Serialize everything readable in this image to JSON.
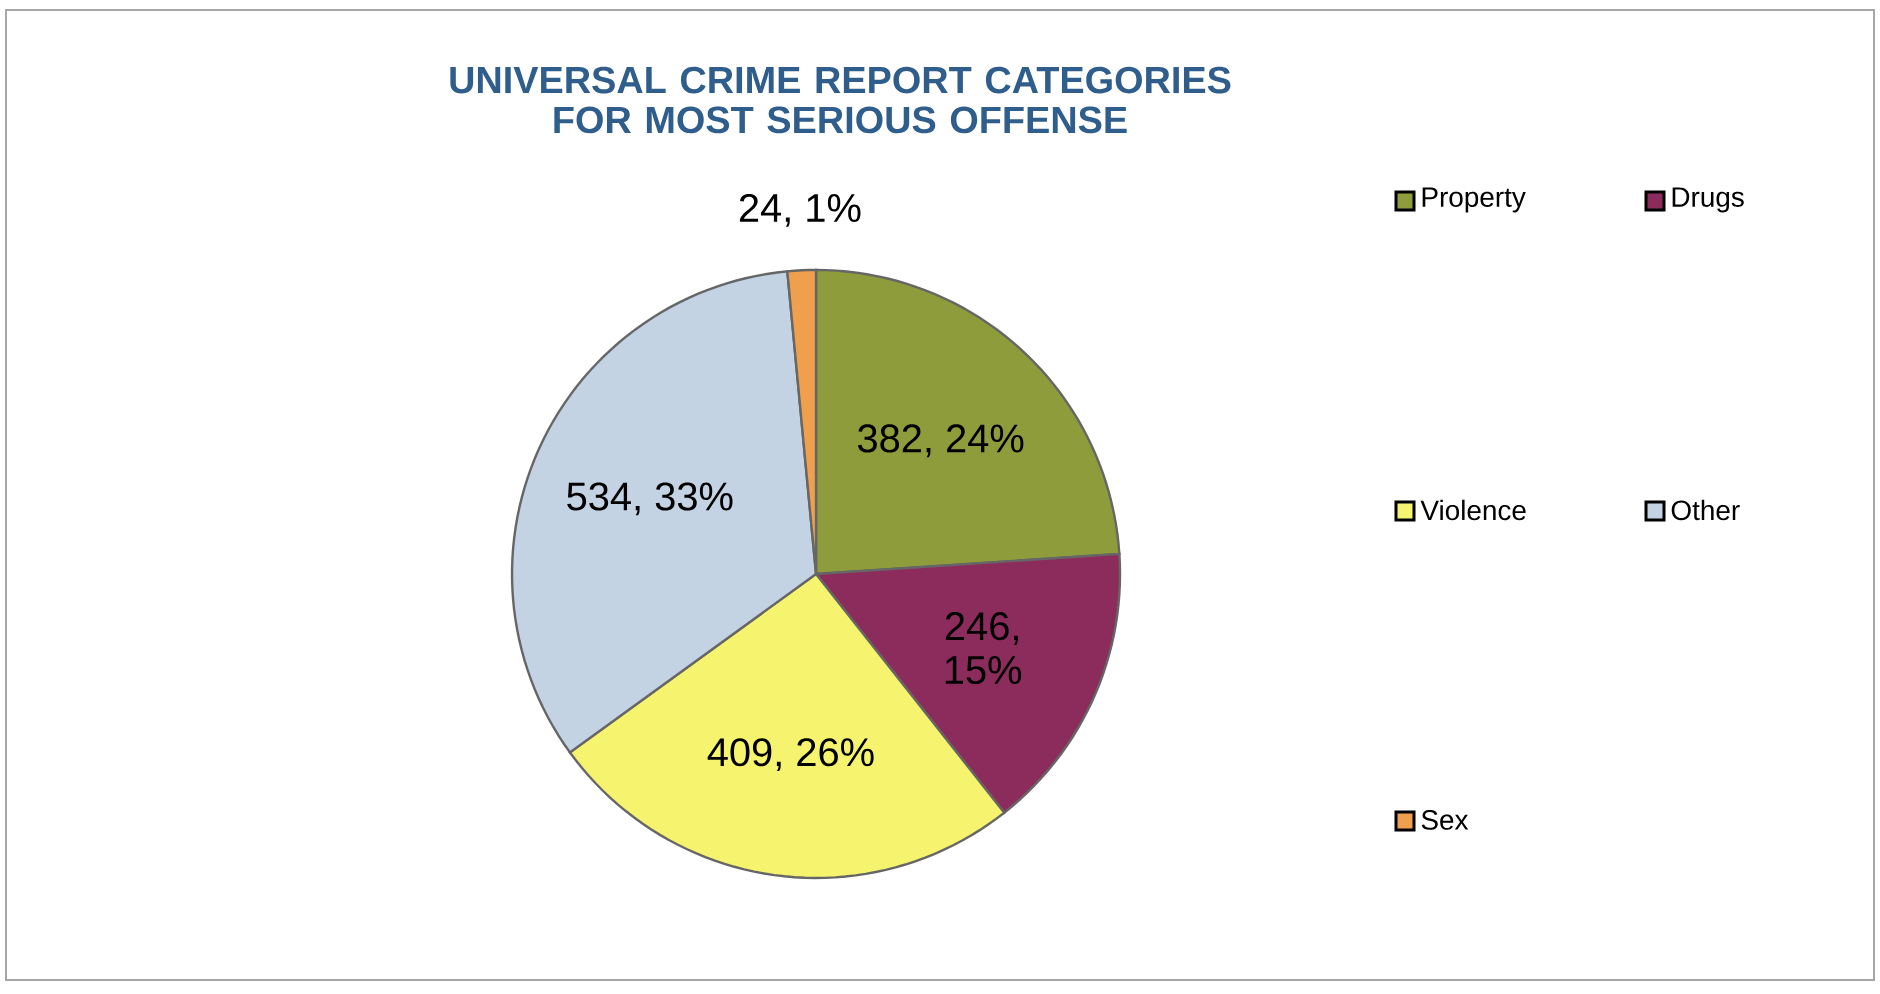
{
  "chart_data": {
    "type": "pie",
    "title": "UNIVERSAL CRIME REPORT CATEGORIES FOR MOST SERIOUS OFFENSE",
    "categories": [
      "Property",
      "Drugs",
      "Violence",
      "Other",
      "Sex"
    ],
    "values": [
      382,
      246,
      409,
      534,
      24
    ],
    "colors": [
      "#8f9c3c",
      "#8c2c5c",
      "#f6f46e",
      "#c3d3e3",
      "#f0a04c"
    ],
    "value_labels": [
      "382, 24%",
      "246, 15%",
      "409, 26%",
      "534, 33%",
      "24, 1%"
    ],
    "legend": "right"
  }
}
